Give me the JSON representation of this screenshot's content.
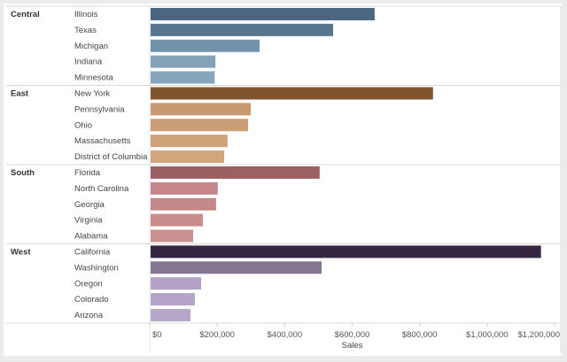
{
  "chart_data": {
    "type": "bar",
    "orientation": "horizontal",
    "title": "",
    "xlabel": "Sales",
    "ylabel": "",
    "xlim": [
      0,
      1200000
    ],
    "x_ticks": [
      0,
      200000,
      400000,
      600000,
      800000,
      1000000,
      1200000
    ],
    "x_tick_labels": [
      "$0",
      "$200,000",
      "$400,000",
      "$600,000",
      "$800,000",
      "$1,000,000",
      "$1,200,000"
    ],
    "grid": false,
    "legend": "none",
    "groups": [
      {
        "region": "Central",
        "items": [
          {
            "state": "Illinois",
            "value": 664000,
            "color": "#4a6680"
          },
          {
            "state": "Texas",
            "value": 541000,
            "color": "#57758e"
          },
          {
            "state": "Michigan",
            "value": 323000,
            "color": "#7393aa"
          },
          {
            "state": "Indiana",
            "value": 192000,
            "color": "#84a3b9"
          },
          {
            "state": "Minnesota",
            "value": 190000,
            "color": "#87a6bb"
          }
        ]
      },
      {
        "region": "East",
        "items": [
          {
            "state": "New York",
            "value": 837000,
            "color": "#7f5530"
          },
          {
            "state": "Pennsylvania",
            "value": 297000,
            "color": "#c99a72"
          },
          {
            "state": "Ohio",
            "value": 289000,
            "color": "#cb9d75"
          },
          {
            "state": "Massachusetts",
            "value": 228000,
            "color": "#cfa37a"
          },
          {
            "state": "District of Columbia",
            "value": 218000,
            "color": "#d1a67c"
          }
        ]
      },
      {
        "region": "South",
        "items": [
          {
            "state": "Florida",
            "value": 501000,
            "color": "#9c6062"
          },
          {
            "state": "North Carolina",
            "value": 199000,
            "color": "#c48688"
          },
          {
            "state": "Georgia",
            "value": 194000,
            "color": "#c5888a"
          },
          {
            "state": "Virginia",
            "value": 155000,
            "color": "#c98c8d"
          },
          {
            "state": "Alabama",
            "value": 126000,
            "color": "#cc9091"
          }
        ]
      },
      {
        "region": "West",
        "items": [
          {
            "state": "California",
            "value": 1157000,
            "color": "#352642"
          },
          {
            "state": "Washington",
            "value": 507000,
            "color": "#857694"
          },
          {
            "state": "Oregon",
            "value": 150000,
            "color": "#b3a2c5"
          },
          {
            "state": "Colorado",
            "value": 131000,
            "color": "#b5a4c7"
          },
          {
            "state": "Arizona",
            "value": 118000,
            "color": "#b6a6c8"
          }
        ]
      }
    ]
  }
}
